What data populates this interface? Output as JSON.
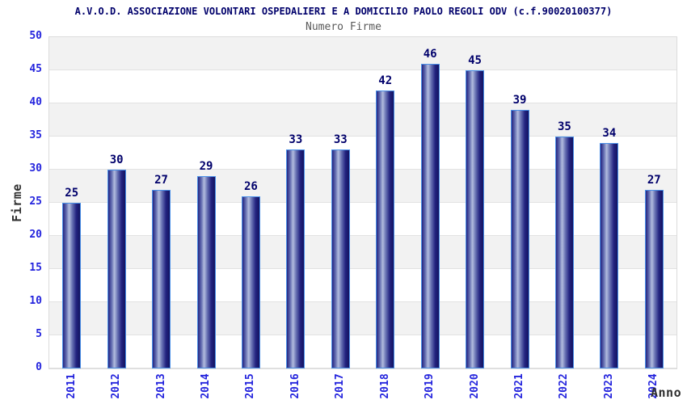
{
  "header": {
    "title": "A.V.O.D. ASSOCIAZIONE VOLONTARI OSPEDALIERI E A DOMICILIO PAOLO REGOLI ODV (c.f.90020100377)",
    "subtitle": "Numero Firme"
  },
  "chart_data": {
    "type": "bar",
    "title": "Numero Firme",
    "categories": [
      "2011",
      "2012",
      "2013",
      "2014",
      "2015",
      "2016",
      "2017",
      "2018",
      "2019",
      "2020",
      "2021",
      "2022",
      "2023",
      "2024"
    ],
    "values": [
      25,
      30,
      27,
      29,
      26,
      33,
      33,
      42,
      46,
      45,
      39,
      35,
      34,
      27
    ],
    "xlabel": "Anno",
    "ylabel": "Firme",
    "ylim": [
      0,
      50
    ],
    "yticks": [
      0,
      5,
      10,
      15,
      20,
      25,
      30,
      35,
      40,
      45,
      50
    ],
    "grid": "horizontal-alternating-bands",
    "legend_position": "none"
  },
  "colors": {
    "title_navy": "#00006b",
    "subtitle_gray": "#5a5a5a",
    "tick_label_blue": "#2424dd",
    "value_label_navy": "#00006b",
    "axis_label_gray": "#2f2f2f",
    "band_gray": "#f2f2f2",
    "gridline": "#e2e2e2",
    "plot_border": "#dcdcdc",
    "bar_border": "#4a90e8",
    "bar_edge_dark": "#232380",
    "bar_mid": "#6670b2",
    "bar_light": "#b2bcde",
    "bar_end_dark": "#131360"
  }
}
